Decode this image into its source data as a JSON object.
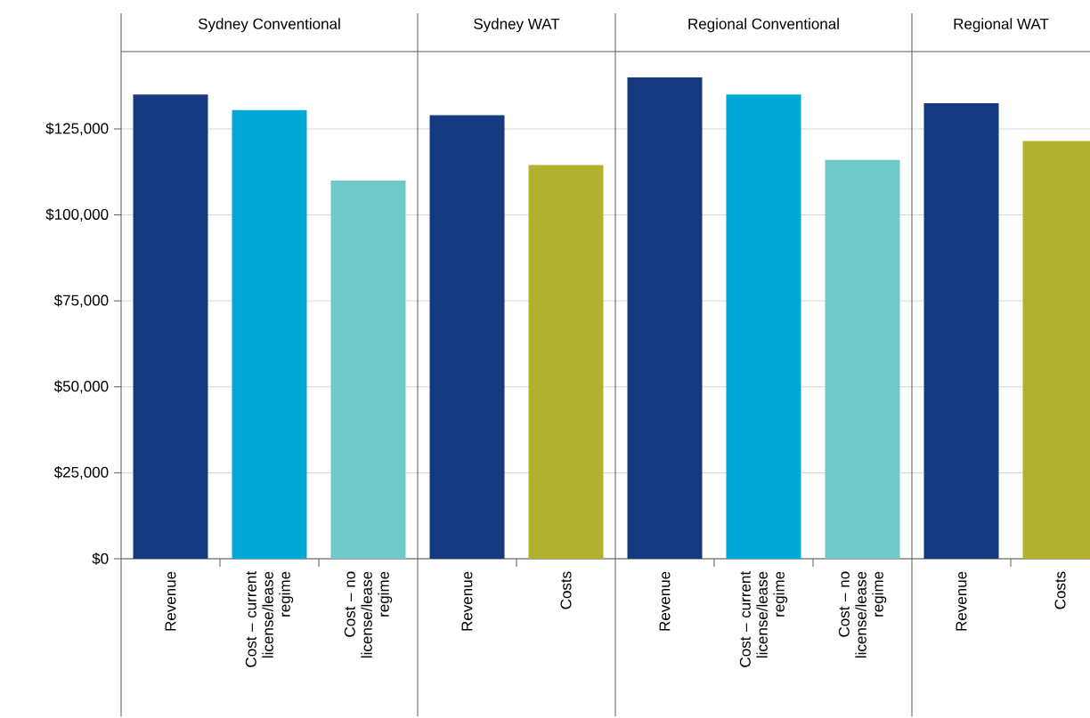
{
  "chart_data": [
    {
      "type": "bar",
      "title": "Sydney Conventional",
      "categories": [
        "Revenue",
        "Cost – current license/lease regime",
        "Cost – no license/lease regime"
      ],
      "values": [
        135000,
        130500,
        110000
      ],
      "colors": [
        "#15397f",
        "#00a8d6",
        "#70c9c9"
      ],
      "ylim": [
        0,
        147500
      ],
      "yticks": [
        {
          "value": 0,
          "label": "$0"
        },
        {
          "value": 25000,
          "label": "$25,000"
        },
        {
          "value": 50000,
          "label": "$50,000"
        },
        {
          "value": 75000,
          "label": "$75,000"
        },
        {
          "value": 100000,
          "label": "$100,000"
        },
        {
          "value": 125000,
          "label": "$125,000"
        }
      ],
      "grid": "y"
    },
    {
      "type": "bar",
      "title": "Sydney WAT",
      "categories": [
        "Revenue",
        "Costs"
      ],
      "values": [
        129000,
        114500
      ],
      "colors": [
        "#15397f",
        "#b2b02c"
      ],
      "ylim": [
        0,
        147500
      ],
      "yticks": [
        0,
        25000,
        50000,
        75000,
        100000,
        125000
      ],
      "grid": "y",
      "tick_labels": "x"
    },
    {
      "type": "bar",
      "title": "Regional Conventional",
      "categories": [
        "Revenue",
        "Cost – current license/lease regime",
        "Cost – no license/lease regime"
      ],
      "values": [
        140000,
        135000,
        116000
      ],
      "colors": [
        "#15397f",
        "#00a8d6",
        "#70c9c9"
      ],
      "ylim": [
        0,
        147500
      ],
      "yticks": [
        0,
        25000,
        50000,
        75000,
        100000,
        125000
      ],
      "grid": "y",
      "tick_labels": "x"
    },
    {
      "type": "bar",
      "title": "Regional WAT",
      "categories": [
        "Revenue",
        "Costs"
      ],
      "values": [
        132500,
        121500
      ],
      "colors": [
        "#15397f",
        "#b2b02c"
      ],
      "ylim": [
        0,
        147500
      ],
      "yticks": [
        0,
        25000,
        50000,
        75000,
        100000,
        125000
      ],
      "grid": "y",
      "tick_labels": "x"
    }
  ]
}
